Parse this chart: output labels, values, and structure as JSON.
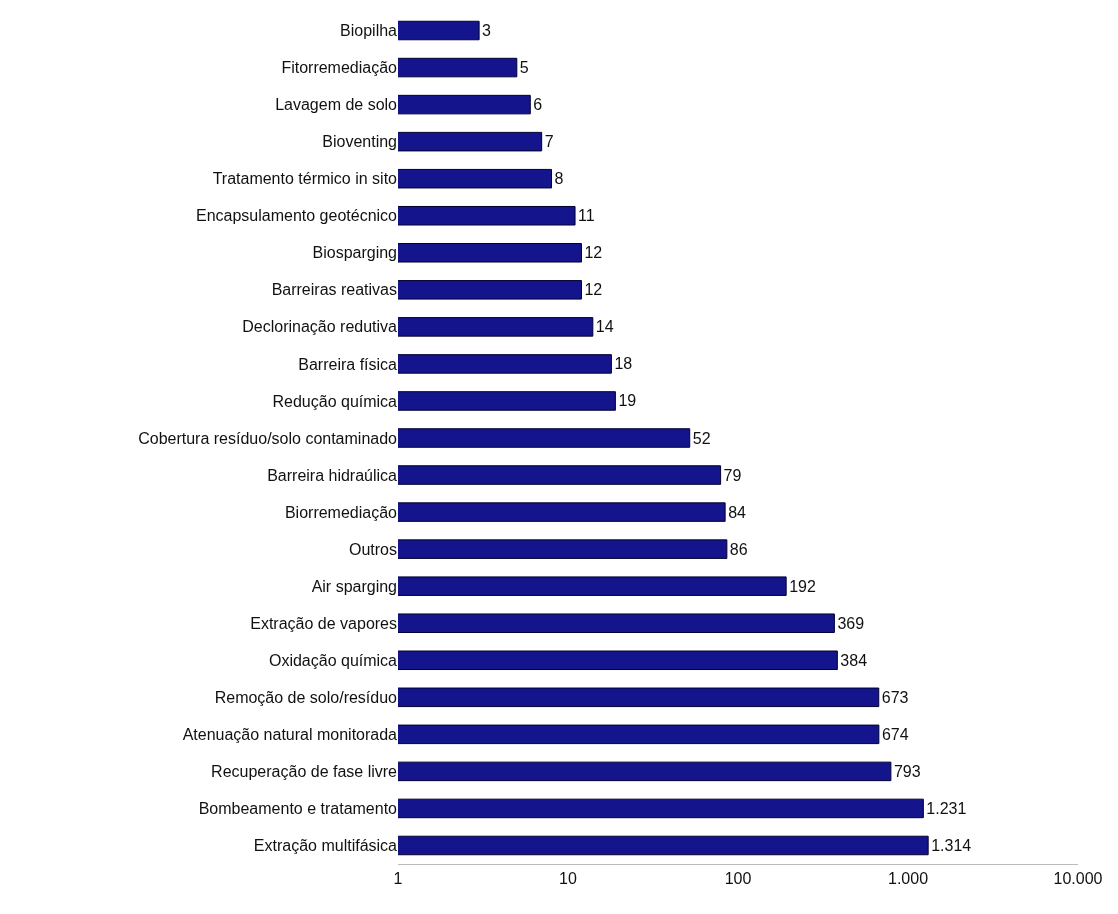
{
  "chart_data": {
    "type": "bar",
    "orientation": "horizontal",
    "log": "x",
    "categories": [
      "Biopilha",
      "Fitorremediação",
      "Lavagem de solo",
      "Bioventing",
      "Tratamento térmico in sito",
      "Encapsulamento geotécnico",
      "Biosparging",
      "Barreiras reativas",
      "Declorinação redutiva",
      "Barreira física",
      "Redução química",
      "Cobertura resíduo/solo contaminado",
      "Barreira hidraúlica",
      "Biorremediação",
      "Outros",
      "Air sparging",
      "Extração de vapores",
      "Oxidação química",
      "Remoção de solo/resíduo",
      "Atenuação natural monitorada",
      "Recuperação de fase livre",
      "Bombeamento e tratamento",
      "Extração multifásica"
    ],
    "values": [
      3,
      5,
      6,
      7,
      8,
      11,
      12,
      12,
      14,
      18,
      19,
      52,
      79,
      84,
      86,
      192,
      369,
      384,
      673,
      674,
      793,
      1231,
      1314
    ],
    "value_labels": [
      "3",
      "5",
      "6",
      "7",
      "8",
      "11",
      "12",
      "12",
      "14",
      "18",
      "19",
      "52",
      "79",
      "84",
      "86",
      "192",
      "369",
      "384",
      "673",
      "674",
      "793",
      "1.231",
      "1.314"
    ],
    "color": "#14148c",
    "xlim": [
      1,
      10000
    ],
    "xticks": [
      1,
      10,
      100,
      {
        "value": 1000,
        "label": "1.000"
      },
      {
        "value": 10000,
        "label": "10.000"
      }
    ],
    "grid": false
  }
}
